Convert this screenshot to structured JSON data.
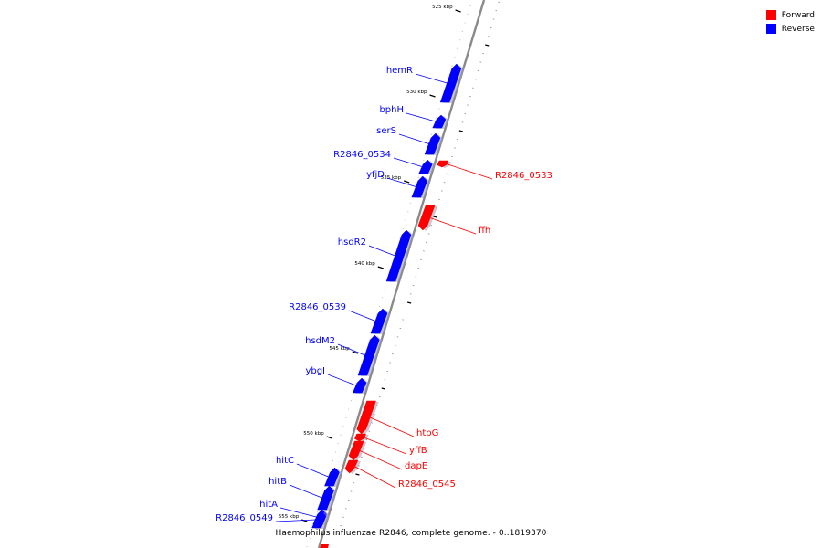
{
  "caption": "Haemophilus influenzae R2846, complete genome. - 0..1819370",
  "legend": [
    {
      "label": "Forward",
      "color": "#ff0000"
    },
    {
      "label": "Reverse",
      "color": "#0000ff"
    }
  ],
  "ticks": [
    {
      "label": "525 kbp"
    },
    {
      "label": "530 kbp"
    },
    {
      "label": "535 kbp"
    },
    {
      "label": "540 kbp"
    },
    {
      "label": "545 kbp"
    },
    {
      "label": "550 kbp"
    },
    {
      "label": "555 kbp"
    }
  ],
  "genes": [
    {
      "name": "hemR",
      "strand": "reverse"
    },
    {
      "name": "bphH",
      "strand": "reverse"
    },
    {
      "name": "serS",
      "strand": "reverse"
    },
    {
      "name": "R2846_0534",
      "strand": "reverse"
    },
    {
      "name": "R2846_0533",
      "strand": "forward"
    },
    {
      "name": "yfjD",
      "strand": "reverse"
    },
    {
      "name": "ffh",
      "strand": "forward"
    },
    {
      "name": "hsdR2",
      "strand": "reverse"
    },
    {
      "name": "R2846_0539",
      "strand": "reverse"
    },
    {
      "name": "hsdM2",
      "strand": "reverse"
    },
    {
      "name": "ybgI",
      "strand": "reverse"
    },
    {
      "name": "htpG",
      "strand": "forward"
    },
    {
      "name": "yffB",
      "strand": "forward"
    },
    {
      "name": "dapE",
      "strand": "forward"
    },
    {
      "name": "R2846_0545",
      "strand": "forward"
    },
    {
      "name": "hitC",
      "strand": "reverse"
    },
    {
      "name": "hitB",
      "strand": "reverse"
    },
    {
      "name": "hitA",
      "strand": "reverse"
    },
    {
      "name": "R2846_0549",
      "strand": "reverse"
    }
  ]
}
